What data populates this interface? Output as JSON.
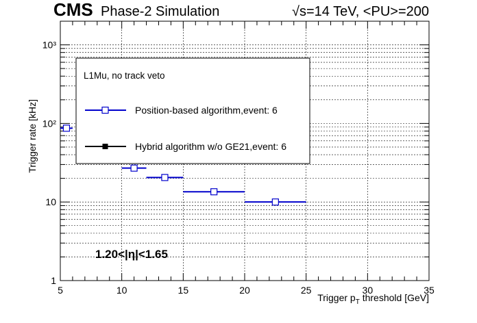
{
  "header": {
    "cms": "CMS",
    "simulation": "Phase-2 Simulation",
    "conditions": "√s=14 TeV, <PU>=200"
  },
  "legend": {
    "header": "L1Mu, no track veto",
    "entries": [
      {
        "label": "Position-based algorithm,event: 6",
        "color": "#0000cc",
        "marker": "open-square"
      },
      {
        "label": "Hybrid algorithm w/o GE21,event: 6",
        "color": "#000000",
        "marker": "filled-square"
      }
    ]
  },
  "annotation": {
    "eta_range": "1.20<|η|<1.65"
  },
  "chart_data": {
    "type": "scatter",
    "xlabel": "Trigger p_T threshold [GeV]",
    "ylabel": "Trigger rate [kHz]",
    "xlim": [
      5,
      35
    ],
    "ylim": [
      1,
      2000
    ],
    "yscale": "log",
    "grid": true,
    "legend_position": "top-center",
    "x_ticks": [
      "5",
      "10",
      "15",
      "20",
      "25",
      "30",
      "35"
    ],
    "y_ticks": [
      "1",
      "10",
      "10²",
      "10³"
    ],
    "series": [
      {
        "name": "Position-based algorithm,event: 6",
        "color": "#0000cc",
        "points": [
          {
            "x": 5.5,
            "xlo": 5,
            "xhi": 6,
            "y": 87,
            "yerr": 4
          },
          {
            "x": 11,
            "xlo": 10,
            "xhi": 12,
            "y": 27,
            "yerr": 2
          },
          {
            "x": 13.5,
            "xlo": 12,
            "xhi": 15,
            "y": 20.5,
            "yerr": 1.5
          },
          {
            "x": 17.5,
            "xlo": 15,
            "xhi": 20,
            "y": 13.5,
            "yerr": 1.2
          },
          {
            "x": 22.5,
            "xlo": 20,
            "xhi": 25,
            "y": 10,
            "yerr": 1
          }
        ]
      },
      {
        "name": "Hybrid algorithm w/o GE21,event: 6",
        "color": "#000000",
        "points": []
      }
    ]
  }
}
